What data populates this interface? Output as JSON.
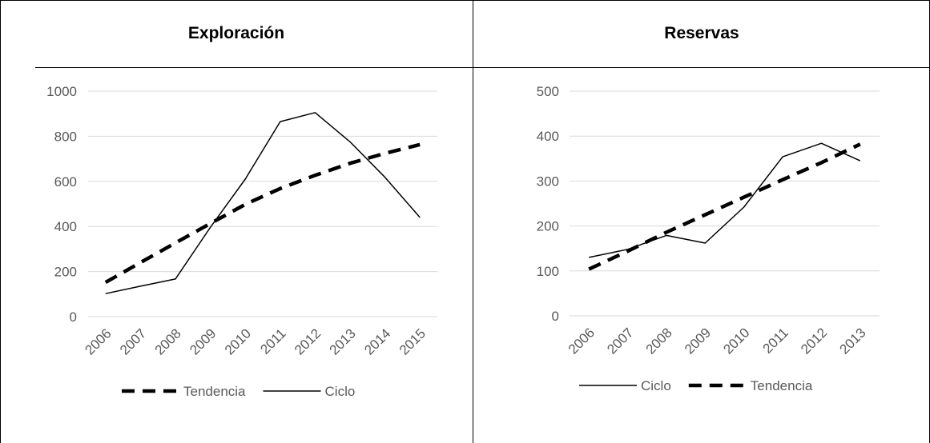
{
  "table": {
    "left_header": "Exploración",
    "right_header": "Reservas"
  },
  "chart_data": [
    {
      "type": "line",
      "title": "",
      "x": [
        "2006",
        "2007",
        "2008",
        "2009",
        "2010",
        "2011",
        "2012",
        "2013",
        "2014",
        "2015"
      ],
      "ylim": [
        0,
        1000
      ],
      "yticks": [
        0,
        200,
        400,
        600,
        800,
        1000
      ],
      "grid": true,
      "legend_position": "bottom",
      "series": [
        {
          "name": "Tendencia",
          "style": "dashed",
          "color": "#000000",
          "values": [
            152,
            240,
            327,
            413,
            498,
            568,
            627,
            680,
            724,
            763
          ]
        },
        {
          "name": "Ciclo",
          "style": "solid",
          "color": "#000000",
          "values": [
            102,
            135,
            167,
            396,
            610,
            865,
            905,
            775,
            618,
            440
          ]
        }
      ],
      "legend_order": [
        "Tendencia",
        "Ciclo"
      ]
    },
    {
      "type": "line",
      "title": "",
      "x": [
        "2006",
        "2007",
        "2008",
        "2009",
        "2010",
        "2011",
        "2012",
        "2013"
      ],
      "ylim": [
        0,
        500
      ],
      "yticks": [
        0,
        100,
        200,
        300,
        400,
        500
      ],
      "grid": true,
      "legend_position": "bottom",
      "series": [
        {
          "name": "Ciclo",
          "style": "solid",
          "color": "#000000",
          "values": [
            130,
            148,
            179,
            162,
            242,
            354,
            384,
            345
          ]
        },
        {
          "name": "Tendencia",
          "style": "dashed",
          "color": "#000000",
          "values": [
            104,
            144,
            186,
            225,
            264,
            303,
            341,
            382
          ]
        }
      ],
      "legend_order": [
        "Ciclo",
        "Tendencia"
      ]
    }
  ]
}
